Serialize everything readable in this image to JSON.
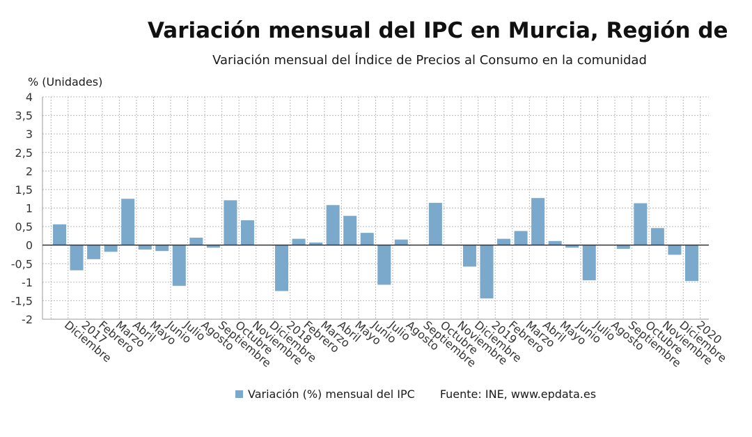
{
  "title": "Variación mensual del IPC en Murcia, Región de",
  "subtitle": "Variación mensual del Índice de Precios al Consumo en la comunidad",
  "unit_label": "% (Unidades)",
  "legend": {
    "series_label": "Variación (%) mensual del IPC",
    "source": "Fuente: INE, www.epdata.es"
  },
  "colors": {
    "bar": "#7ba9cb",
    "grid": "#b9b9b9",
    "zero_line": "#333333"
  },
  "chart_data": {
    "type": "bar",
    "categories": [
      "Diciembre",
      "2017",
      "Febrero",
      "Marzo",
      "Abril",
      "Mayo",
      "Junio",
      "Julio",
      "Agosto",
      "Septiembre",
      "Octubre",
      "Noviembre",
      "Diciembre",
      "2018",
      "Febrero",
      "Marzo",
      "Abril",
      "Mayo",
      "Junio",
      "Julio",
      "Agosto",
      "Septiembre",
      "Octubre",
      "Noviembre",
      "Diciembre",
      "2019",
      "Febrero",
      "Marzo",
      "Abril",
      "Mayo",
      "Junio",
      "Julio",
      "Agosto",
      "Septiembre",
      "Octubre",
      "Noviembre",
      "Diciembre",
      "2020"
    ],
    "series": [
      {
        "name": "Variación (%) mensual del IPC",
        "values": [
          0.56,
          -0.68,
          -0.38,
          -0.18,
          1.25,
          -0.12,
          -0.16,
          -1.1,
          0.2,
          -0.07,
          1.21,
          0.67,
          0.0,
          -1.24,
          0.17,
          0.07,
          1.08,
          0.79,
          0.33,
          -1.07,
          0.15,
          0.0,
          1.14,
          0.0,
          -0.58,
          -1.44,
          0.17,
          0.38,
          1.27,
          0.11,
          -0.07,
          -0.95,
          0.0,
          -0.1,
          1.13,
          0.46,
          -0.26,
          -0.97
        ]
      }
    ],
    "ylim": [
      -2,
      4
    ],
    "yticks": [
      "-2",
      "-1,5",
      "-1",
      "-0,5",
      "0",
      "0,5",
      "1",
      "1,5",
      "2",
      "2,5",
      "3",
      "3,5",
      "4"
    ],
    "grid": true,
    "legend_position": "bottom"
  }
}
